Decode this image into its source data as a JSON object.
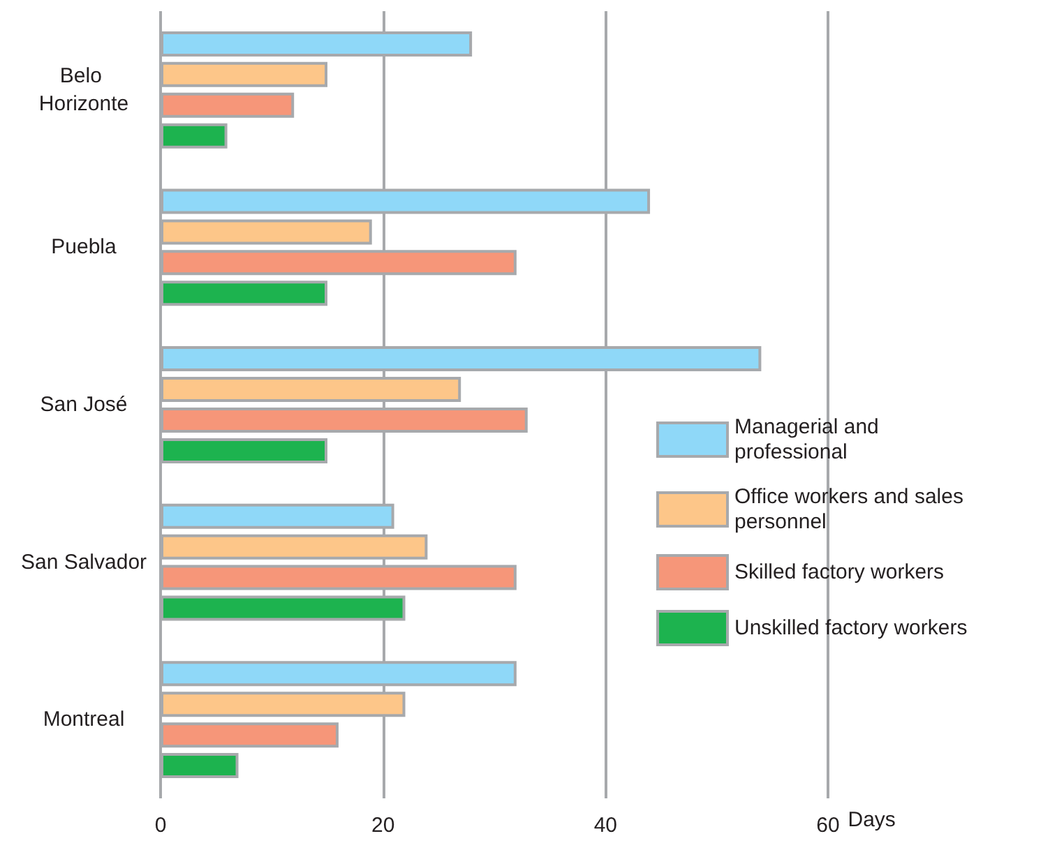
{
  "chart_data": {
    "type": "bar",
    "orientation": "horizontal",
    "xlabel": "Days",
    "categories": [
      "Belo Horizonte",
      "Puebla",
      "San José",
      "San Salvador",
      "Montreal"
    ],
    "series": [
      {
        "name": "Managerial and professional",
        "color": "#8fd8f8",
        "values": [
          28,
          44,
          54,
          21,
          32
        ]
      },
      {
        "name": "Office workers and sales personnel",
        "color": "#fdc689",
        "values": [
          15,
          19,
          27,
          24,
          22
        ]
      },
      {
        "name": "Skilled factory workers",
        "color": "#f69679",
        "values": [
          12,
          32,
          33,
          32,
          16
        ]
      },
      {
        "name": "Unskilled factory workers",
        "color": "#1db34f",
        "values": [
          6,
          15,
          15,
          22,
          7
        ]
      }
    ],
    "xlim": [
      0,
      60
    ],
    "xticks": [
      0,
      20,
      40,
      60
    ],
    "grid": "x",
    "legend": "right"
  }
}
